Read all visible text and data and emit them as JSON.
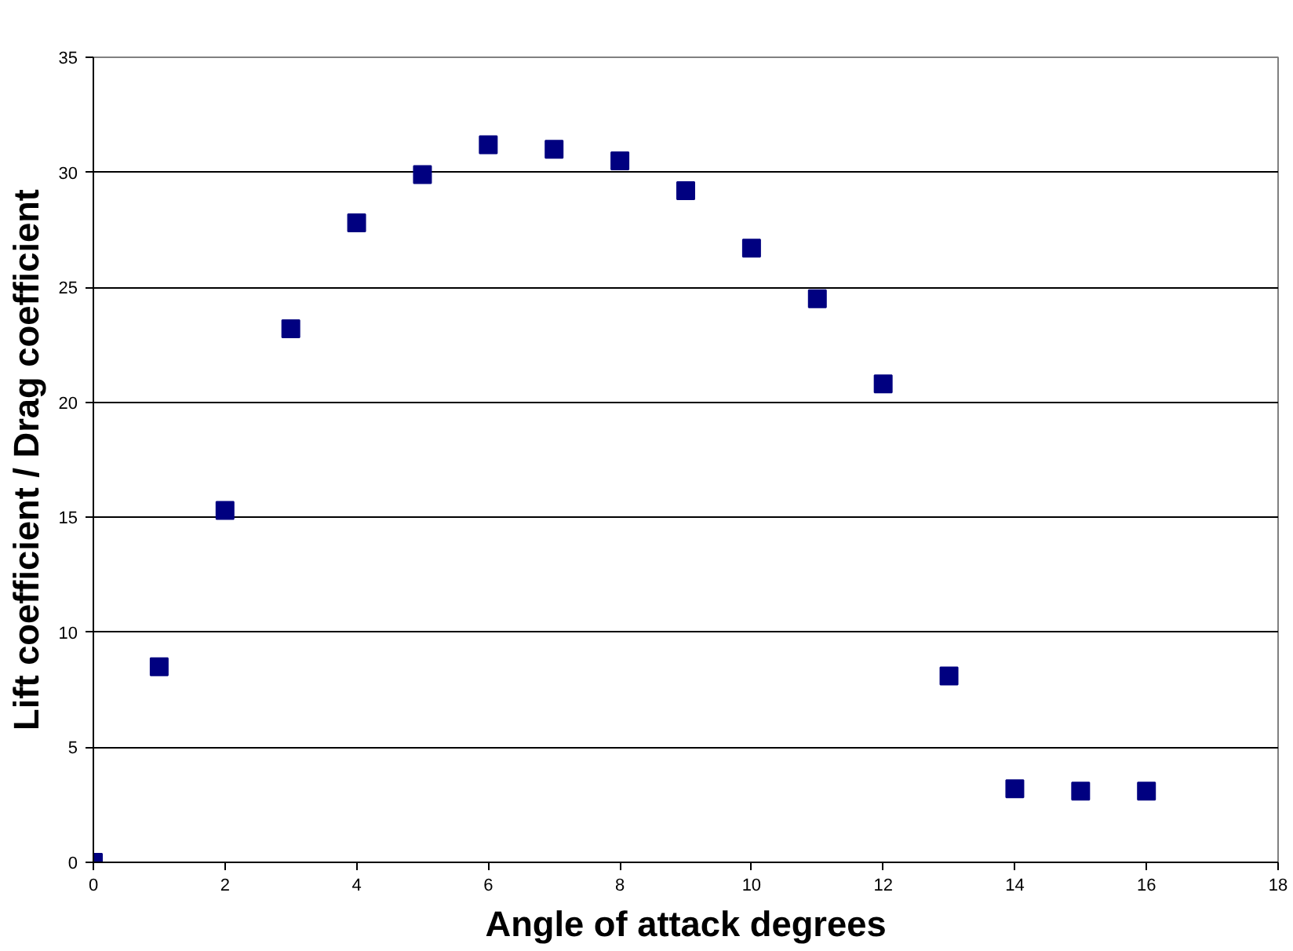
{
  "chart_data": {
    "type": "scatter",
    "xlabel": "Angle of attack degrees",
    "ylabel": "Lift coefficient / Drag coefficient",
    "x": [
      0,
      1,
      2,
      3,
      4,
      5,
      6,
      7,
      8,
      9,
      10,
      11,
      12,
      13,
      14,
      15,
      16
    ],
    "series": [
      {
        "color": "#000080",
        "values": [
          0,
          8.5,
          15.3,
          23.2,
          27.8,
          29.9,
          31.2,
          31.0,
          30.5,
          29.2,
          26.7,
          24.5,
          20.8,
          8.1,
          3.2,
          3.1,
          3.1
        ]
      }
    ],
    "xlim": [
      0,
      18
    ],
    "xticks": [
      0,
      2,
      4,
      6,
      8,
      10,
      12,
      14,
      16,
      18
    ],
    "ylim": [
      0,
      35
    ],
    "yticks": [
      0,
      5,
      10,
      15,
      20,
      25,
      30,
      35
    ],
    "grid": "y",
    "marker": "square"
  }
}
